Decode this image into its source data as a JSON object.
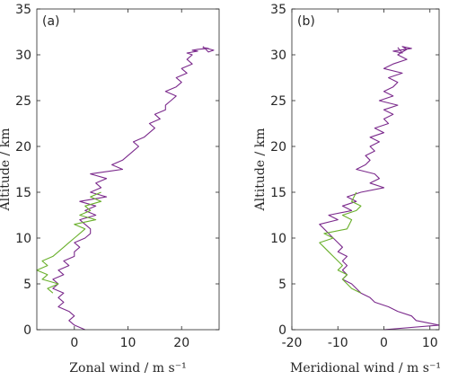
{
  "chart_data": [
    {
      "type": "line",
      "panel_label": "(a)",
      "xlabel": "Zonal wind / m s⁻¹",
      "ylabel": "Altitude / km",
      "xlim": [
        -7,
        27
      ],
      "ylim": [
        0,
        35
      ],
      "xticks": [
        0,
        10,
        20
      ],
      "yticks": [
        0,
        5,
        10,
        15,
        20,
        25,
        30,
        35
      ],
      "grid": false,
      "series": [
        {
          "color": "#7b2a8c",
          "x": [
            2,
            0,
            -1,
            0,
            -1,
            -3,
            -2,
            -3,
            -2,
            -4,
            -3,
            -4,
            -2,
            -3,
            -1,
            -2,
            0,
            0,
            1,
            0,
            2,
            3,
            3,
            2,
            1,
            4,
            2,
            4,
            1,
            6,
            3,
            5,
            4,
            6,
            3,
            9,
            7,
            9,
            10,
            11,
            12,
            11,
            13,
            14,
            15,
            14,
            16,
            15,
            17,
            17,
            18,
            19,
            17,
            19,
            20,
            19,
            21,
            20,
            22,
            21,
            22,
            21,
            23,
            22,
            23,
            25,
            24,
            26,
            25,
            24
          ],
          "y": [
            0,
            0.5,
            1,
            1.5,
            2,
            2.5,
            3,
            3.5,
            4,
            4.5,
            5,
            5.5,
            6,
            6.5,
            7,
            7.5,
            8,
            8.5,
            9,
            9.5,
            10,
            10.5,
            11,
            11.5,
            12,
            12.5,
            13,
            13.5,
            14,
            14.5,
            15,
            15.5,
            16,
            16.5,
            17,
            17.5,
            18,
            18.5,
            19,
            19.5,
            20,
            20.5,
            21,
            21.5,
            22,
            22.5,
            23,
            23.5,
            24,
            24.5,
            25,
            25.5,
            26,
            26.5,
            27,
            27.5,
            28,
            28.5,
            29,
            29.5,
            30,
            30.2,
            30.4,
            30.5,
            30.6,
            30.7,
            30.8,
            30.5,
            30.3,
            30.9
          ]
        },
        {
          "color": "#6ab02c",
          "x": [
            -4,
            -5,
            -3,
            -6,
            -5,
            -7,
            -5,
            -6,
            -4,
            -3,
            -2,
            -1,
            0,
            1,
            2,
            0,
            4,
            1,
            3,
            2,
            5,
            3,
            5
          ],
          "y": [
            4,
            4.5,
            5,
            5.5,
            6,
            6.5,
            7,
            7.5,
            8,
            8.5,
            9,
            9.5,
            10,
            10.5,
            11,
            11.5,
            12,
            12.5,
            13,
            13.5,
            14,
            14.5,
            15
          ]
        }
      ]
    },
    {
      "type": "line",
      "panel_label": "(b)",
      "xlabel": "Meridional wind / m s⁻¹",
      "ylabel": "Altitude / km",
      "xlim": [
        -20,
        12
      ],
      "ylim": [
        0,
        35
      ],
      "xticks": [
        -20,
        -10,
        0,
        10
      ],
      "yticks": [
        0,
        5,
        10,
        15,
        20,
        25,
        30,
        35
      ],
      "grid": false,
      "series": [
        {
          "color": "#7b2a8c",
          "x": [
            0,
            12,
            7,
            6,
            3,
            1,
            -2,
            -3,
            -5,
            -6,
            -7,
            -9,
            -8,
            -9,
            -8,
            -9,
            -8,
            -10,
            -9,
            -10,
            -11,
            -12,
            -13,
            -14,
            -10,
            -12,
            -7,
            -9,
            -6,
            -8,
            -5,
            0,
            -3,
            -1,
            -2,
            -6,
            -4,
            -3,
            -4,
            -2,
            -3,
            -1,
            -3,
            0,
            -2,
            1,
            0,
            2,
            0,
            3,
            -1,
            2,
            0,
            2,
            3,
            1,
            4,
            0,
            2,
            5,
            3,
            4,
            5,
            4,
            6,
            2,
            4,
            3
          ],
          "y": [
            0,
            0.5,
            1,
            1.5,
            2,
            2.5,
            3,
            3.5,
            4,
            4.5,
            5,
            5.5,
            6,
            6.5,
            7,
            7.5,
            8,
            8.5,
            9,
            9.5,
            10,
            10.5,
            11,
            11.5,
            12,
            12.5,
            13,
            13.5,
            14,
            14.5,
            15,
            15.5,
            16,
            16.5,
            17,
            17.5,
            18,
            18.5,
            19,
            19.5,
            20,
            20.5,
            21,
            21.5,
            22,
            22.5,
            23,
            23.5,
            24,
            24.5,
            25,
            25.5,
            26,
            26.5,
            27,
            27.5,
            28,
            28.5,
            29,
            29.5,
            30,
            30.3,
            30.6,
            30.9,
            30.7,
            30.4,
            30.2,
            30.8
          ]
        },
        {
          "color": "#6ab02c",
          "x": [
            -5,
            -7,
            -8,
            -9,
            -8,
            -10,
            -9,
            -10,
            -11,
            -12,
            -13,
            -14,
            -11,
            -13,
            -8,
            -7,
            -9,
            -6,
            -5,
            -7,
            -6
          ],
          "y": [
            4,
            4.5,
            5,
            5.5,
            6,
            6.5,
            7,
            7.5,
            8,
            8.5,
            9,
            9.5,
            10,
            10.5,
            11,
            12,
            12.5,
            13,
            13.5,
            14,
            15
          ]
        }
      ]
    }
  ]
}
